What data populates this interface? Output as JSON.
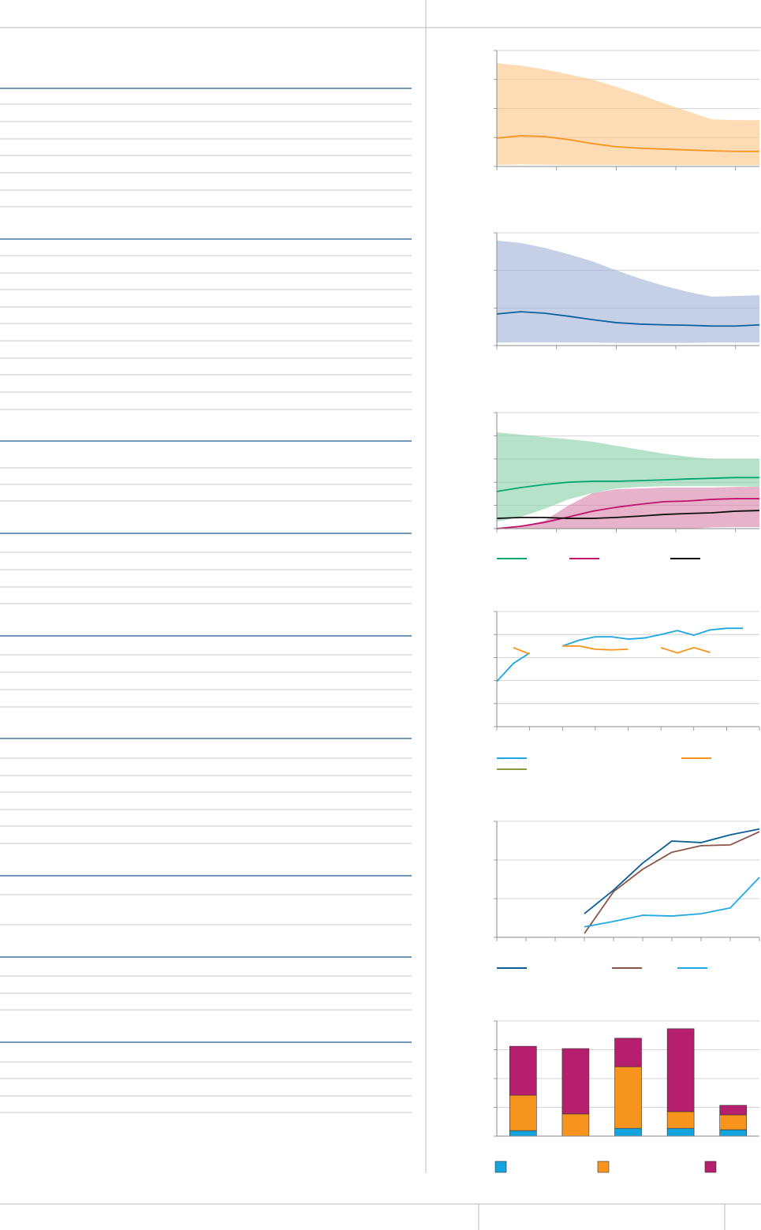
{
  "chart_data": [
    {
      "type": "band",
      "x": [
        0,
        0.4,
        0.8,
        1.2,
        1.6,
        2.0,
        2.4,
        2.8,
        3.2,
        3.6,
        4.0,
        4.4
      ],
      "xlim": [
        0,
        4.4
      ],
      "xticks": [
        0,
        1,
        2,
        3,
        4
      ],
      "ylim": [
        0,
        4
      ],
      "yticks": [
        0,
        1,
        2,
        3,
        4
      ],
      "grid": true,
      "series": [
        {
          "color": "#f7941d",
          "band_color": "#fcc78c",
          "values": [
            0.98,
            1.06,
            1.03,
            0.93,
            0.79,
            0.68,
            0.63,
            0.6,
            0.57,
            0.54,
            0.52,
            0.52
          ],
          "upper": [
            3.56,
            3.48,
            3.35,
            3.18,
            3.0,
            2.75,
            2.48,
            2.18,
            1.9,
            1.63,
            1.6,
            1.6
          ],
          "lower": [
            0.05,
            0.07,
            0.06,
            0.05,
            0.05,
            0.05,
            0.04,
            0.04,
            0.04,
            0.04,
            0.04,
            0.04
          ]
        }
      ]
    },
    {
      "type": "band",
      "x": [
        0,
        0.4,
        0.8,
        1.2,
        1.6,
        2.0,
        2.4,
        2.8,
        3.2,
        3.6,
        4.0,
        4.4
      ],
      "xlim": [
        0,
        4.4
      ],
      "xticks": [
        0,
        1,
        2,
        3,
        4
      ],
      "ylim": [
        0,
        3
      ],
      "yticks": [
        0,
        1,
        2,
        3
      ],
      "grid": true,
      "series": [
        {
          "color": "#0a62a3",
          "band_color": "#a6b6d8",
          "values": [
            0.84,
            0.9,
            0.86,
            0.78,
            0.69,
            0.61,
            0.57,
            0.55,
            0.54,
            0.52,
            0.52,
            0.55
          ],
          "upper": [
            2.79,
            2.73,
            2.6,
            2.43,
            2.24,
            2.0,
            1.78,
            1.59,
            1.43,
            1.3,
            1.32,
            1.34
          ],
          "lower": [
            0.08,
            0.09,
            0.09,
            0.08,
            0.08,
            0.07,
            0.07,
            0.07,
            0.07,
            0.08,
            0.08,
            0.08
          ]
        }
      ]
    },
    {
      "type": "band",
      "x": [
        0,
        0.4,
        0.8,
        1.2,
        1.6,
        2.0,
        2.4,
        2.8,
        3.2,
        3.6,
        4.0,
        4.4
      ],
      "xlim": [
        0,
        4.4
      ],
      "xticks": [
        0,
        1,
        2,
        3,
        4
      ],
      "ylim": [
        0,
        5
      ],
      "yticks": [
        0,
        1,
        2,
        3,
        4,
        5
      ],
      "grid": true,
      "series": [
        {
          "color": "#00a870",
          "band_color": "#8fd3ae",
          "values": [
            1.6,
            1.77,
            1.9,
            2.0,
            2.04,
            2.04,
            2.07,
            2.1,
            2.14,
            2.17,
            2.2,
            2.2
          ],
          "upper": [
            4.15,
            4.05,
            3.95,
            3.85,
            3.75,
            3.57,
            3.4,
            3.23,
            3.1,
            3.0,
            3.0,
            3.0
          ],
          "lower": [
            0.3,
            0.5,
            0.85,
            1.26,
            1.53,
            1.73,
            1.8,
            1.83,
            1.83,
            1.83,
            1.83,
            1.8
          ]
        },
        {
          "color": "#c0146d",
          "band_color": "#d88aae",
          "values": [
            0,
            0.1,
            0.27,
            0.5,
            0.75,
            0.92,
            1.05,
            1.16,
            1.19,
            1.26,
            1.29,
            1.29
          ],
          "upper": [
            0,
            0.07,
            0.34,
            1.0,
            1.53,
            1.7,
            1.73,
            1.77,
            1.77,
            1.77,
            1.8,
            1.8
          ],
          "lower": [
            0,
            0,
            0,
            0,
            0,
            0,
            0,
            0,
            0,
            0.05,
            0.07,
            0.07
          ]
        },
        {
          "color": "#111111",
          "values": [
            0.44,
            0.48,
            0.48,
            0.44,
            0.44,
            0.48,
            0.54,
            0.61,
            0.65,
            0.68,
            0.75,
            0.78
          ]
        }
      ]
    },
    {
      "type": "line",
      "x": [
        0,
        1,
        2,
        3,
        4,
        5,
        6,
        7,
        8,
        9,
        10,
        11,
        12,
        13,
        14,
        15
      ],
      "xlim": [
        0,
        16
      ],
      "xticks": [
        0,
        2,
        4,
        6,
        8,
        10,
        12,
        14,
        16
      ],
      "ylim": [
        0,
        5
      ],
      "yticks": [
        0,
        1,
        2,
        3,
        4,
        5
      ],
      "grid": true,
      "series": [
        {
          "color": "#1ba6e0",
          "values": [
            1.96,
            2.74,
            3.2,
            null,
            3.5,
            3.75,
            3.9,
            3.9,
            3.8,
            3.85,
            4.0,
            4.17,
            3.97,
            4.2,
            4.27,
            4.27
          ]
        },
        {
          "color": "#f7941d",
          "values": [
            null,
            3.43,
            3.15,
            null,
            3.5,
            3.5,
            3.36,
            3.33,
            3.36,
            null,
            3.43,
            3.2,
            3.43,
            3.22,
            null,
            null
          ]
        },
        {
          "color": "#8c9a3c",
          "values": [
            null,
            null,
            null,
            null,
            null,
            null,
            null,
            null,
            null,
            null,
            null,
            null,
            null,
            null,
            null,
            null
          ]
        }
      ]
    },
    {
      "type": "line",
      "x": [
        0,
        1,
        2,
        3,
        4,
        5,
        6,
        7,
        8,
        9
      ],
      "xlim": [
        0,
        9
      ],
      "xticks": [
        0,
        1,
        2,
        3,
        4,
        5,
        6,
        7,
        8,
        9
      ],
      "ylim": [
        0,
        3
      ],
      "yticks": [
        0,
        1,
        2,
        3
      ],
      "grid": true,
      "series": [
        {
          "color": "#0a5f96",
          "values": [
            null,
            null,
            null,
            0.61,
            1.22,
            1.92,
            2.49,
            2.45,
            2.65,
            2.8
          ]
        },
        {
          "color": "#8b5649",
          "values": [
            null,
            null,
            null,
            0.1,
            1.18,
            1.76,
            2.2,
            2.37,
            2.39,
            2.73
          ]
        },
        {
          "color": "#22a9e3",
          "values": [
            null,
            null,
            null,
            0.27,
            0.41,
            0.57,
            0.55,
            0.61,
            0.76,
            1.55
          ]
        }
      ]
    },
    {
      "type": "stacked_bar",
      "categories": [
        null,
        null,
        null,
        null,
        null
      ],
      "ylim": [
        0,
        4
      ],
      "yticks": [
        0,
        1,
        2,
        3,
        4
      ],
      "grid": true,
      "series": [
        {
          "color": "#14a4e0",
          "values": [
            0.19,
            0,
            0.27,
            0.27,
            0.22
          ]
        },
        {
          "color": "#f7941d",
          "values": [
            1.23,
            0.77,
            2.14,
            0.58,
            0.52
          ]
        },
        {
          "color": "#b51f6d",
          "values": [
            1.7,
            2.27,
            0.99,
            2.88,
            0.33
          ]
        }
      ]
    }
  ]
}
